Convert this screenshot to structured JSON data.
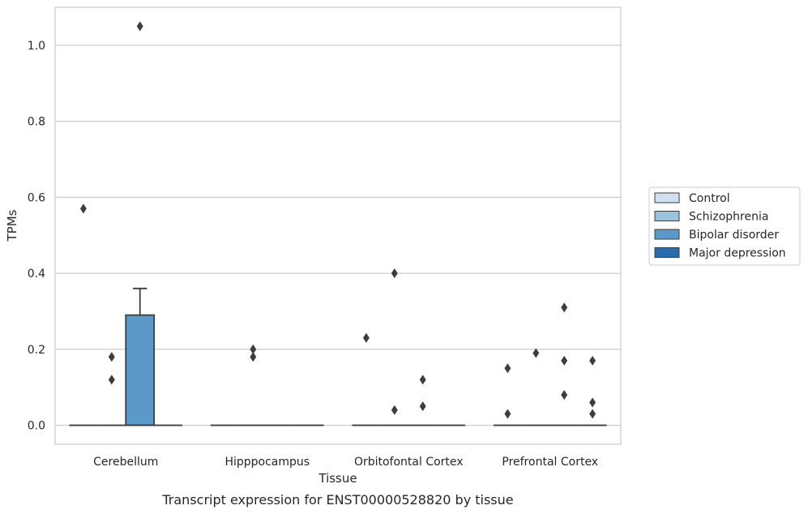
{
  "chart_data": {
    "type": "box",
    "title": "Transcript expression for ENST00000528820 by tissue",
    "xlabel": "Tissue",
    "ylabel": "TPMs",
    "categories": [
      "Cerebellum",
      "Hipppocampus",
      "Orbitofontal Cortex",
      "Prefrontal Cortex"
    ],
    "ylim": [
      -0.05,
      1.1
    ],
    "yticks": [
      0.0,
      0.2,
      0.4,
      0.6,
      0.8,
      1.0
    ],
    "ytick_labels": [
      "0.0",
      "0.2",
      "0.4",
      "0.6",
      "0.8",
      "1.0"
    ],
    "grid": true,
    "legend_position": "right",
    "series": [
      {
        "name": "Control",
        "color": "#d0e1f2",
        "boxes": [
          {
            "category": "Cerebellum",
            "q1": 0.0,
            "median": 0.0,
            "q3": 0.0,
            "whisker_low": 0.0,
            "whisker_high": 0.0,
            "outliers": [
              0.57
            ]
          },
          {
            "category": "Hipppocampus",
            "q1": 0.0,
            "median": 0.0,
            "q3": 0.0,
            "whisker_low": 0.0,
            "whisker_high": 0.0,
            "outliers": []
          },
          {
            "category": "Orbitofontal Cortex",
            "q1": 0.0,
            "median": 0.0,
            "q3": 0.0,
            "whisker_low": 0.0,
            "whisker_high": 0.0,
            "outliers": [
              0.23
            ]
          },
          {
            "category": "Prefrontal Cortex",
            "q1": 0.0,
            "median": 0.0,
            "q3": 0.0,
            "whisker_low": 0.0,
            "whisker_high": 0.0,
            "outliers": [
              0.03,
              0.15
            ]
          }
        ]
      },
      {
        "name": "Schizophrenia",
        "color": "#9ac3de",
        "boxes": [
          {
            "category": "Cerebellum",
            "q1": 0.0,
            "median": 0.0,
            "q3": 0.0,
            "whisker_low": 0.0,
            "whisker_high": 0.0,
            "outliers": [
              0.12,
              0.18
            ]
          },
          {
            "category": "Hipppocampus",
            "q1": 0.0,
            "median": 0.0,
            "q3": 0.0,
            "whisker_low": 0.0,
            "whisker_high": 0.0,
            "outliers": [
              0.18,
              0.2
            ]
          },
          {
            "category": "Orbitofontal Cortex",
            "q1": 0.0,
            "median": 0.0,
            "q3": 0.0,
            "whisker_low": 0.0,
            "whisker_high": 0.0,
            "outliers": [
              0.04,
              0.4
            ]
          },
          {
            "category": "Prefrontal Cortex",
            "q1": 0.0,
            "median": 0.0,
            "q3": 0.0,
            "whisker_low": 0.0,
            "whisker_high": 0.0,
            "outliers": [
              0.19
            ]
          }
        ]
      },
      {
        "name": "Bipolar disorder",
        "color": "#5b9ac8",
        "boxes": [
          {
            "category": "Cerebellum",
            "q1": 0.0,
            "median": 0.0,
            "q3": 0.29,
            "whisker_low": 0.0,
            "whisker_high": 0.36,
            "outliers": [
              1.05
            ]
          },
          {
            "category": "Hipppocampus",
            "q1": 0.0,
            "median": 0.0,
            "q3": 0.0,
            "whisker_low": 0.0,
            "whisker_high": 0.0,
            "outliers": []
          },
          {
            "category": "Orbitofontal Cortex",
            "q1": 0.0,
            "median": 0.0,
            "q3": 0.0,
            "whisker_low": 0.0,
            "whisker_high": 0.0,
            "outliers": [
              0.05,
              0.12
            ]
          },
          {
            "category": "Prefrontal Cortex",
            "q1": 0.0,
            "median": 0.0,
            "q3": 0.0,
            "whisker_low": 0.0,
            "whisker_high": 0.0,
            "outliers": [
              0.08,
              0.17,
              0.31
            ]
          }
        ]
      },
      {
        "name": "Major depression",
        "color": "#2a6bab",
        "boxes": [
          {
            "category": "Cerebellum",
            "q1": 0.0,
            "median": 0.0,
            "q3": 0.0,
            "whisker_low": 0.0,
            "whisker_high": 0.0,
            "outliers": []
          },
          {
            "category": "Hipppocampus",
            "q1": 0.0,
            "median": 0.0,
            "q3": 0.0,
            "whisker_low": 0.0,
            "whisker_high": 0.0,
            "outliers": []
          },
          {
            "category": "Orbitofontal Cortex",
            "q1": 0.0,
            "median": 0.0,
            "q3": 0.0,
            "whisker_low": 0.0,
            "whisker_high": 0.0,
            "outliers": []
          },
          {
            "category": "Prefrontal Cortex",
            "q1": 0.0,
            "median": 0.0,
            "q3": 0.0,
            "whisker_low": 0.0,
            "whisker_high": 0.0,
            "outliers": [
              0.03,
              0.06,
              0.17
            ]
          }
        ]
      }
    ]
  }
}
